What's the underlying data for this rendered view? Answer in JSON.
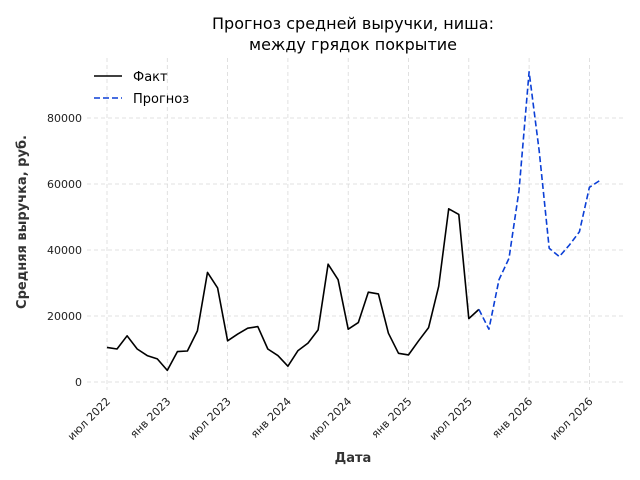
{
  "chart_data": {
    "type": "line",
    "title_lines": [
      "Прогноз средней выручки, ниша:",
      "между грядок покрытие"
    ],
    "xlabel": "Дата",
    "ylabel": "Средняя выручка, руб.",
    "ylim": [
      0,
      98000
    ],
    "yticks": [
      0,
      20000,
      40000,
      60000,
      80000
    ],
    "ytick_labels": [
      "0",
      "20000",
      "40000",
      "60000",
      "80000"
    ],
    "x_start": "2022-07",
    "xticks": [
      "2022-07",
      "2023-01",
      "2023-07",
      "2024-01",
      "2024-07",
      "2025-01",
      "2025-07",
      "2026-01",
      "2026-07"
    ],
    "xtick_labels": [
      "июл 2022",
      "янв 2023",
      "июл 2023",
      "янв 2024",
      "июл 2024",
      "янв 2025",
      "июл 2025",
      "янв 2026",
      "июл 2026"
    ],
    "grid": true,
    "legend_position": "top-left",
    "series": [
      {
        "name": "Факт",
        "color": "#000000",
        "style": "solid",
        "x": [
          "2022-07",
          "2022-08",
          "2022-09",
          "2022-10",
          "2022-11",
          "2022-12",
          "2023-01",
          "2023-02",
          "2023-03",
          "2023-04",
          "2023-05",
          "2023-06",
          "2023-07",
          "2023-08",
          "2023-09",
          "2023-10",
          "2023-11",
          "2023-12",
          "2024-01",
          "2024-02",
          "2024-03",
          "2024-04",
          "2024-05",
          "2024-06",
          "2024-07",
          "2024-08",
          "2024-09",
          "2024-10",
          "2024-11",
          "2024-12",
          "2025-01",
          "2025-02",
          "2025-03",
          "2025-04",
          "2025-05",
          "2025-06",
          "2025-07",
          "2025-08"
        ],
        "y": [
          10500,
          10000,
          14000,
          10000,
          8000,
          7000,
          3500,
          9200,
          9400,
          15500,
          33200,
          28500,
          12500,
          14500,
          16300,
          16800,
          10000,
          8000,
          4800,
          9500,
          11800,
          15800,
          35700,
          31000,
          16000,
          18000,
          27200,
          26700,
          14800,
          8700,
          8200,
          12500,
          16500,
          29000,
          52500,
          50800,
          19200,
          22000
        ]
      },
      {
        "name": "Прогноз",
        "color": "#0b3fd6",
        "style": "dashed",
        "x": [
          "2025-08",
          "2025-09",
          "2025-10",
          "2025-11",
          "2025-12",
          "2026-01",
          "2026-02",
          "2026-03",
          "2026-04",
          "2026-05",
          "2026-06",
          "2026-07",
          "2026-08"
        ],
        "y": [
          22000,
          16000,
          31000,
          37500,
          58000,
          94000,
          70000,
          40500,
          38000,
          41500,
          45500,
          59000,
          61000
        ]
      }
    ]
  }
}
